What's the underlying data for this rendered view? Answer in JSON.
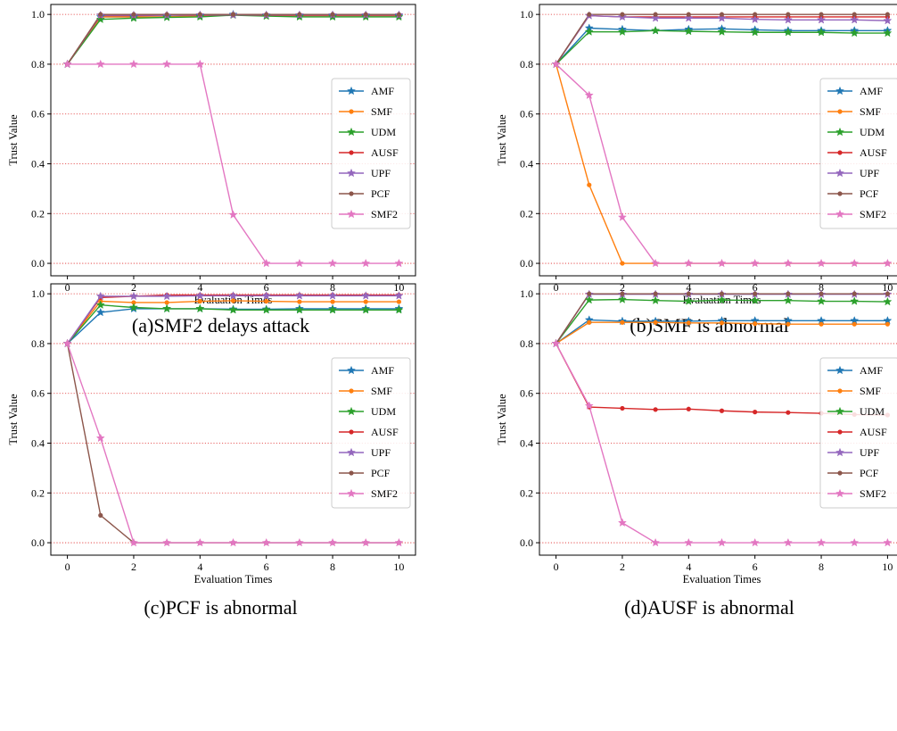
{
  "chart_data": [
    {
      "type": "line",
      "caption": "(a)SMF2 delays attack",
      "xlabel": "Evaluation Times",
      "ylabel": "Trust Value",
      "xlim": [
        -0.5,
        10.5
      ],
      "ylim": [
        -0.05,
        1.04
      ],
      "xticks": [
        "0",
        "2",
        "4",
        "6",
        "8",
        "10"
      ],
      "yticks": [
        "0.0",
        "0.2",
        "0.4",
        "0.6",
        "0.8",
        "1.0"
      ],
      "grid": "horizontal dotted red",
      "legend": "right",
      "x": [
        0,
        1,
        2,
        3,
        4,
        5,
        6,
        7,
        8,
        9,
        10
      ],
      "series": [
        {
          "name": "AMF",
          "color": "#1f77b4",
          "marker": "star",
          "values": [
            0.8,
            0.99,
            0.99,
            0.99,
            0.995,
            1.0,
            0.995,
            0.995,
            0.995,
            0.995,
            0.995
          ]
        },
        {
          "name": "SMF",
          "color": "#ff7f0e",
          "marker": "dot",
          "values": [
            0.8,
            0.99,
            0.99,
            0.99,
            0.995,
            1.0,
            0.995,
            0.995,
            0.995,
            0.995,
            0.995
          ]
        },
        {
          "name": "UDM",
          "color": "#2ca02c",
          "marker": "star",
          "values": [
            0.8,
            0.98,
            0.985,
            0.988,
            0.99,
            0.997,
            0.993,
            0.99,
            0.99,
            0.99,
            0.99
          ]
        },
        {
          "name": "AUSF",
          "color": "#d62728",
          "marker": "dot",
          "values": [
            0.8,
            0.995,
            0.995,
            0.997,
            0.997,
            0.998,
            0.997,
            0.997,
            0.997,
            0.997,
            0.997
          ]
        },
        {
          "name": "UPF",
          "color": "#9467bd",
          "marker": "star",
          "values": [
            0.8,
            0.997,
            0.997,
            0.997,
            0.998,
            0.998,
            0.998,
            0.998,
            0.998,
            0.998,
            0.998
          ]
        },
        {
          "name": "PCF",
          "color": "#8c564b",
          "marker": "dot",
          "values": [
            0.8,
            1.0,
            1.0,
            1.0,
            1.0,
            1.0,
            1.0,
            1.0,
            1.0,
            1.0,
            1.0
          ]
        },
        {
          "name": "SMF2",
          "color": "#e377c2",
          "marker": "star",
          "values": [
            0.8,
            0.8,
            0.8,
            0.8,
            0.8,
            0.195,
            0.0,
            0.0,
            0.0,
            0.0,
            0.0
          ]
        }
      ]
    },
    {
      "type": "line",
      "caption": "(b)SMF is abnormal",
      "xlabel": "Evaluation Times",
      "ylabel": "Trust Value",
      "xlim": [
        -0.5,
        10.5
      ],
      "ylim": [
        -0.05,
        1.04
      ],
      "xticks": [
        "0",
        "2",
        "4",
        "6",
        "8",
        "10"
      ],
      "yticks": [
        "0.0",
        "0.2",
        "0.4",
        "0.6",
        "0.8",
        "1.0"
      ],
      "grid": "horizontal dotted red",
      "legend": "right",
      "x": [
        0,
        1,
        2,
        3,
        4,
        5,
        6,
        7,
        8,
        9,
        10
      ],
      "series": [
        {
          "name": "AMF",
          "color": "#1f77b4",
          "marker": "star",
          "values": [
            0.8,
            0.945,
            0.94,
            0.935,
            0.94,
            0.942,
            0.938,
            0.935,
            0.935,
            0.935,
            0.935
          ]
        },
        {
          "name": "SMF",
          "color": "#ff7f0e",
          "marker": "dot",
          "values": [
            0.8,
            0.315,
            0.0,
            0.0,
            0.0,
            0.0,
            0.0,
            0.0,
            0.0,
            0.0,
            0.0
          ]
        },
        {
          "name": "UDM",
          "color": "#2ca02c",
          "marker": "star",
          "values": [
            0.8,
            0.93,
            0.93,
            0.935,
            0.932,
            0.93,
            0.928,
            0.928,
            0.928,
            0.925,
            0.925
          ]
        },
        {
          "name": "AUSF",
          "color": "#d62728",
          "marker": "dot",
          "values": [
            0.8,
            0.995,
            0.99,
            0.99,
            0.99,
            0.99,
            0.99,
            0.99,
            0.99,
            0.99,
            0.99
          ]
        },
        {
          "name": "UPF",
          "color": "#9467bd",
          "marker": "star",
          "values": [
            0.8,
            0.995,
            0.99,
            0.985,
            0.985,
            0.985,
            0.98,
            0.978,
            0.978,
            0.978,
            0.975
          ]
        },
        {
          "name": "PCF",
          "color": "#8c564b",
          "marker": "dot",
          "values": [
            0.8,
            1.0,
            1.0,
            1.0,
            1.0,
            1.0,
            1.0,
            1.0,
            1.0,
            1.0,
            1.0
          ]
        },
        {
          "name": "SMF2",
          "color": "#e377c2",
          "marker": "star",
          "values": [
            0.8,
            0.675,
            0.185,
            0.0,
            0.0,
            0.0,
            0.0,
            0.0,
            0.0,
            0.0,
            0.0
          ]
        }
      ]
    },
    {
      "type": "line",
      "caption": "(c)PCF is abnormal",
      "xlabel": "Evaluation Times",
      "ylabel": "Trust Value",
      "xlim": [
        -0.5,
        10.5
      ],
      "ylim": [
        -0.05,
        1.04
      ],
      "xticks": [
        "0",
        "2",
        "4",
        "6",
        "8",
        "10"
      ],
      "yticks": [
        "0.0",
        "0.2",
        "0.4",
        "0.6",
        "0.8",
        "1.0"
      ],
      "grid": "horizontal dotted red",
      "legend": "right",
      "x": [
        0,
        1,
        2,
        3,
        4,
        5,
        6,
        7,
        8,
        9,
        10
      ],
      "series": [
        {
          "name": "AMF",
          "color": "#1f77b4",
          "marker": "star",
          "values": [
            0.8,
            0.925,
            0.94,
            0.94,
            0.94,
            0.938,
            0.938,
            0.94,
            0.94,
            0.94,
            0.94
          ]
        },
        {
          "name": "SMF",
          "color": "#ff7f0e",
          "marker": "dot",
          "values": [
            0.8,
            0.97,
            0.965,
            0.965,
            0.97,
            0.972,
            0.97,
            0.968,
            0.968,
            0.968,
            0.968
          ]
        },
        {
          "name": "UDM",
          "color": "#2ca02c",
          "marker": "star",
          "values": [
            0.8,
            0.955,
            0.945,
            0.94,
            0.94,
            0.935,
            0.935,
            0.935,
            0.935,
            0.935,
            0.935
          ]
        },
        {
          "name": "AUSF",
          "color": "#d62728",
          "marker": "dot",
          "values": [
            0.8,
            0.985,
            0.99,
            0.995,
            0.995,
            0.995,
            0.995,
            0.995,
            0.995,
            0.995,
            0.995
          ]
        },
        {
          "name": "UPF",
          "color": "#9467bd",
          "marker": "star",
          "values": [
            0.8,
            0.99,
            0.99,
            0.99,
            0.992,
            0.992,
            0.992,
            0.992,
            0.992,
            0.992,
            0.992
          ]
        },
        {
          "name": "PCF",
          "color": "#8c564b",
          "marker": "dot",
          "values": [
            0.8,
            0.11,
            0.0,
            0.0,
            0.0,
            0.0,
            0.0,
            0.0,
            0.0,
            0.0,
            0.0
          ]
        },
        {
          "name": "SMF2",
          "color": "#e377c2",
          "marker": "star",
          "values": [
            0.8,
            0.42,
            0.0,
            0.0,
            0.0,
            0.0,
            0.0,
            0.0,
            0.0,
            0.0,
            0.0
          ]
        }
      ]
    },
    {
      "type": "line",
      "caption": "(d)AUSF is abnormal",
      "xlabel": "Evaluation Times",
      "ylabel": "Trust Value",
      "xlim": [
        -0.5,
        10.5
      ],
      "ylim": [
        -0.05,
        1.04
      ],
      "xticks": [
        "0",
        "2",
        "4",
        "6",
        "8",
        "10"
      ],
      "yticks": [
        "0.0",
        "0.2",
        "0.4",
        "0.6",
        "0.8",
        "1.0"
      ],
      "grid": "horizontal dotted red",
      "legend": "right",
      "x": [
        0,
        1,
        2,
        3,
        4,
        5,
        6,
        7,
        8,
        9,
        10
      ],
      "series": [
        {
          "name": "AMF",
          "color": "#1f77b4",
          "marker": "star",
          "values": [
            0.8,
            0.895,
            0.89,
            0.89,
            0.89,
            0.892,
            0.892,
            0.892,
            0.892,
            0.892,
            0.892
          ]
        },
        {
          "name": "SMF",
          "color": "#ff7f0e",
          "marker": "dot",
          "values": [
            0.8,
            0.885,
            0.885,
            0.885,
            0.883,
            0.883,
            0.88,
            0.878,
            0.878,
            0.878,
            0.878
          ]
        },
        {
          "name": "UDM",
          "color": "#2ca02c",
          "marker": "star",
          "values": [
            0.8,
            0.975,
            0.977,
            0.973,
            0.97,
            0.975,
            0.973,
            0.973,
            0.97,
            0.97,
            0.968
          ]
        },
        {
          "name": "AUSF",
          "color": "#d62728",
          "marker": "dot",
          "values": [
            0.8,
            0.545,
            0.54,
            0.535,
            0.537,
            0.53,
            0.525,
            0.523,
            0.52,
            0.515,
            0.513
          ]
        },
        {
          "name": "UPF",
          "color": "#9467bd",
          "marker": "star",
          "values": [
            0.8,
            0.998,
            0.998,
            0.998,
            0.998,
            0.998,
            0.998,
            0.998,
            0.998,
            0.998,
            0.998
          ]
        },
        {
          "name": "PCF",
          "color": "#8c564b",
          "marker": "dot",
          "values": [
            0.8,
            1.0,
            1.0,
            1.0,
            1.0,
            1.0,
            1.0,
            1.0,
            1.0,
            1.0,
            1.0
          ]
        },
        {
          "name": "SMF2",
          "color": "#e377c2",
          "marker": "star",
          "values": [
            0.8,
            0.55,
            0.08,
            0.0,
            0.0,
            0.0,
            0.0,
            0.0,
            0.0,
            0.0,
            0.0
          ]
        }
      ]
    }
  ]
}
